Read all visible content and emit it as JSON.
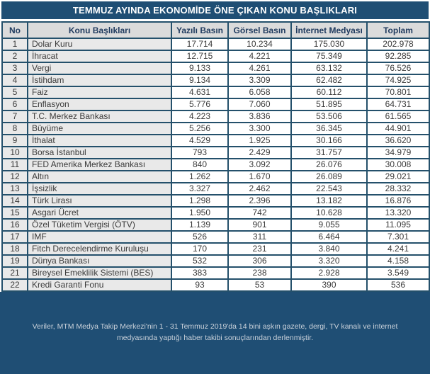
{
  "page_title": "TEMMUZ AYINDA EKONOMİDE ÖNE ÇIKAN KONU BAŞLIKLARI",
  "chart_data": {
    "type": "table",
    "title": "TEMMUZ AYINDA EKONOMİDE ÖNE ÇIKAN KONU BAŞLIKLARI",
    "columns": [
      "No",
      "Konu Başlıkları",
      "Yazılı Basın",
      "Görsel Basın",
      "İnternet Medyası",
      "Toplam"
    ],
    "rows": [
      [
        "1",
        "Dolar Kuru",
        "17.714",
        "10.234",
        "175.030",
        "202.978"
      ],
      [
        "2",
        "İhracat",
        "12.715",
        "4.221",
        "75.349",
        "92.285"
      ],
      [
        "3",
        "Vergi",
        "9.133",
        "4.261",
        "63.132",
        "76.526"
      ],
      [
        "4",
        "İstihdam",
        "9.134",
        "3.309",
        "62.482",
        "74.925"
      ],
      [
        "5",
        "Faiz",
        "4.631",
        "6.058",
        "60.112",
        "70.801"
      ],
      [
        "6",
        "Enflasyon",
        "5.776",
        "7.060",
        "51.895",
        "64.731"
      ],
      [
        "7",
        "T.C. Merkez Bankası",
        "4.223",
        "3.836",
        "53.506",
        "61.565"
      ],
      [
        "8",
        "Büyüme",
        "5.256",
        "3.300",
        "36.345",
        "44.901"
      ],
      [
        "9",
        "İthalat",
        "4.529",
        "1.925",
        "30.166",
        "36.620"
      ],
      [
        "10",
        "Borsa İstanbul",
        "793",
        "2.429",
        "31.757",
        "34.979"
      ],
      [
        "11",
        "FED Amerika Merkez Bankası",
        "840",
        "3.092",
        "26.076",
        "30.008"
      ],
      [
        "12",
        "Altın",
        "1.262",
        "1.670",
        "26.089",
        "29.021"
      ],
      [
        "13",
        "İşsizlik",
        "3.327",
        "2.462",
        "22.543",
        "28.332"
      ],
      [
        "14",
        "Türk Lirası",
        "1.298",
        "2.396",
        "13.182",
        "16.876"
      ],
      [
        "15",
        "Asgari Ücret",
        "1.950",
        "742",
        "10.628",
        "13.320"
      ],
      [
        "16",
        "Özel Tüketim Vergisi (ÖTV)",
        "1.139",
        "901",
        "9.055",
        "11.095"
      ],
      [
        "17",
        "IMF",
        "526",
        "311",
        "6.464",
        "7.301"
      ],
      [
        "18",
        "Fitch Derecelendirme Kuruluşu",
        "170",
        "231",
        "3.840",
        "4.241"
      ],
      [
        "19",
        "Dünya Bankası",
        "532",
        "306",
        "3.320",
        "4.158"
      ],
      [
        "21",
        "Bireysel Emeklilik Sistemi (BES)",
        "383",
        "238",
        "2.928",
        "3.549"
      ],
      [
        "22",
        "Kredi Garanti Fonu",
        "93",
        "53",
        "390",
        "536"
      ]
    ],
    "footnote": "Veriler, MTM Medya Takip Merkezi'nin 1 - 31 Temmuz 2019'da 14 bini aşkın gazete, dergi, TV kanalı ve internet medyasında yaptığı haber takibi sonuçlarından derlenmiştir."
  },
  "colors": {
    "title_bg": "#1F4E74",
    "border": "#24506B",
    "header_bg": "#DBDBDB",
    "header_text": "#1F3A5E",
    "label_cell_bg": "#E9E9E9",
    "value_cell_bg": "#FFFFFF",
    "body_text": "#3A3A3A",
    "footer_text": "#C9D1DA"
  }
}
